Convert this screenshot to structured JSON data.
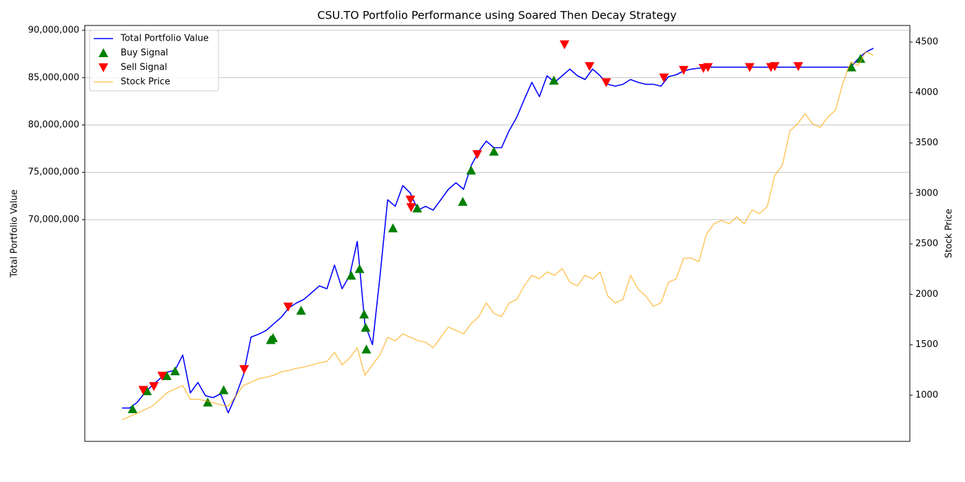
{
  "chart_data": {
    "type": "line",
    "title": "CSU.TO Portfolio Performance using Soared Then Decay Strategy",
    "y_label": "Total Portfolio Value",
    "y2_label": "Stock Price",
    "xlim": [
      -4.9,
      103.8
    ],
    "ylim": [
      46580000,
      90510000
    ],
    "yticks": [
      {
        "value": 70000000,
        "label": "70,000,000"
      },
      {
        "value": 75000000,
        "label": "75,000,000"
      },
      {
        "value": 80000000,
        "label": "80,000,000"
      },
      {
        "value": 85000000,
        "label": "85,000,000"
      },
      {
        "value": 90000000,
        "label": "90,000,000"
      }
    ],
    "y2lim": [
      543,
      4664
    ],
    "y2ticks": [
      1000,
      1500,
      2000,
      2500,
      3000,
      3500,
      4000,
      4500
    ],
    "grid": true,
    "legend": "upper-left",
    "x": [
      0,
      1,
      2,
      3,
      4,
      5,
      6,
      7,
      8,
      9,
      10,
      11,
      12,
      13,
      14,
      15,
      16,
      17,
      18,
      19,
      20,
      21,
      22,
      23,
      24,
      25,
      26,
      27,
      28,
      29,
      30,
      31,
      32,
      33,
      34,
      35,
      36,
      37,
      38,
      39,
      40,
      41,
      42,
      43,
      44,
      45,
      46,
      47,
      48,
      49,
      50,
      51,
      52,
      53,
      54,
      55,
      56,
      57,
      58,
      59,
      60,
      61,
      62,
      63,
      64,
      65,
      66,
      67,
      68,
      69,
      70,
      71,
      72,
      73,
      74,
      75,
      76,
      77,
      78,
      79,
      80,
      81,
      82,
      83,
      84,
      85,
      86,
      87,
      88,
      89,
      90,
      91,
      92,
      93,
      94,
      95,
      96,
      97,
      98,
      99
    ],
    "series": [
      {
        "name": "Total Portfolio Value",
        "color": "#0000ff",
        "marker": "line",
        "values": [
          50100000,
          50100000,
          50700000,
          51700000,
          52500000,
          53200000,
          53900000,
          54100000,
          55700000,
          51700000,
          52800000,
          51400000,
          51200000,
          51600000,
          49600000,
          51400000,
          53600000,
          57600000,
          57900000,
          58300000,
          59000000,
          59700000,
          60700000,
          61200000,
          61600000,
          62300000,
          63000000,
          62700000,
          65200000,
          62700000,
          64100000,
          67700000,
          59000000,
          56800000,
          64100000,
          72100000,
          71400000,
          73600000,
          72800000,
          71000000,
          71400000,
          71000000,
          72100000,
          73200000,
          73900000,
          73200000,
          75700000,
          77200000,
          78300000,
          77600000,
          77600000,
          79400000,
          80800000,
          82700000,
          84500000,
          83000000,
          85200000,
          84500000,
          85200000,
          85900000,
          85200000,
          84800000,
          85900000,
          85200000,
          84300000,
          84100000,
          84300000,
          84800000,
          84500000,
          84300000,
          84300000,
          84100000,
          85100000,
          85300000,
          85700000,
          85900000,
          86000000,
          86100000,
          86100000,
          86100000,
          86100000,
          86100000,
          86100000,
          86100000,
          86100000,
          86100000,
          86100000,
          86100000,
          86100000,
          86100000,
          86100000,
          86100000,
          86100000,
          86100000,
          86100000,
          86100000,
          86100000,
          87000000,
          87700000,
          88100000
        ]
      },
      {
        "name": "Buy Signal",
        "color": "#008000",
        "marker": "triangle-up",
        "x": [
          1.4,
          3.3,
          5.9,
          7.0,
          11.3,
          13.4,
          19.6,
          19.9,
          23.6,
          30.2,
          31.3,
          31.9,
          32.1,
          32.2,
          35.7,
          38.9,
          44.9,
          46.0,
          49.0,
          56.9,
          96.1,
          97.3
        ],
        "values": [
          50000000,
          51900000,
          53500000,
          54000000,
          50700000,
          52000000,
          57300000,
          57500000,
          60400000,
          64100000,
          64800000,
          60000000,
          58600000,
          56300000,
          69100000,
          71200000,
          71900000,
          75200000,
          77200000,
          84700000,
          86100000,
          87000000
        ]
      },
      {
        "name": "Sell Signal",
        "color": "#ff0000",
        "marker": "triangle-down",
        "x": [
          2.8,
          4.2,
          5.3,
          16.1,
          21.9,
          38.0,
          38.1,
          46.8,
          58.3,
          61.6,
          63.8,
          71.4,
          74.0,
          76.6,
          77.2,
          82.7,
          85.5,
          86.0,
          89.1
        ],
        "values": [
          52000000,
          52400000,
          53500000,
          54200000,
          60800000,
          72100000,
          71300000,
          76900000,
          88500000,
          86200000,
          84500000,
          85000000,
          85800000,
          86000000,
          86100000,
          86100000,
          86100000,
          86200000,
          86200000
        ]
      },
      {
        "name": "Stock Price",
        "color": "#ffa500",
        "opacity": 0.6,
        "marker": "line",
        "axis": "y2",
        "values": [
          755,
          789,
          823,
          857,
          892,
          960,
          1028,
          1062,
          1096,
          960,
          960,
          946,
          926,
          905,
          892,
          994,
          1096,
          1130,
          1164,
          1178,
          1198,
          1233,
          1246,
          1267,
          1280,
          1301,
          1321,
          1335,
          1424,
          1301,
          1369,
          1471,
          1198,
          1301,
          1403,
          1574,
          1540,
          1608,
          1574,
          1540,
          1526,
          1471,
          1574,
          1676,
          1642,
          1608,
          1710,
          1778,
          1915,
          1812,
          1778,
          1915,
          1949,
          2085,
          2188,
          2153,
          2222,
          2188,
          2256,
          2119,
          2085,
          2188,
          2153,
          2222,
          1983,
          1915,
          1949,
          2188,
          2051,
          1983,
          1881,
          1915,
          2119,
          2153,
          2358,
          2358,
          2324,
          2597,
          2699,
          2733,
          2699,
          2767,
          2699,
          2836,
          2801,
          2870,
          3177,
          3279,
          3620,
          3688,
          3791,
          3688,
          3654,
          3757,
          3825,
          4098,
          4302,
          4268,
          4405,
          4370
        ]
      }
    ]
  }
}
